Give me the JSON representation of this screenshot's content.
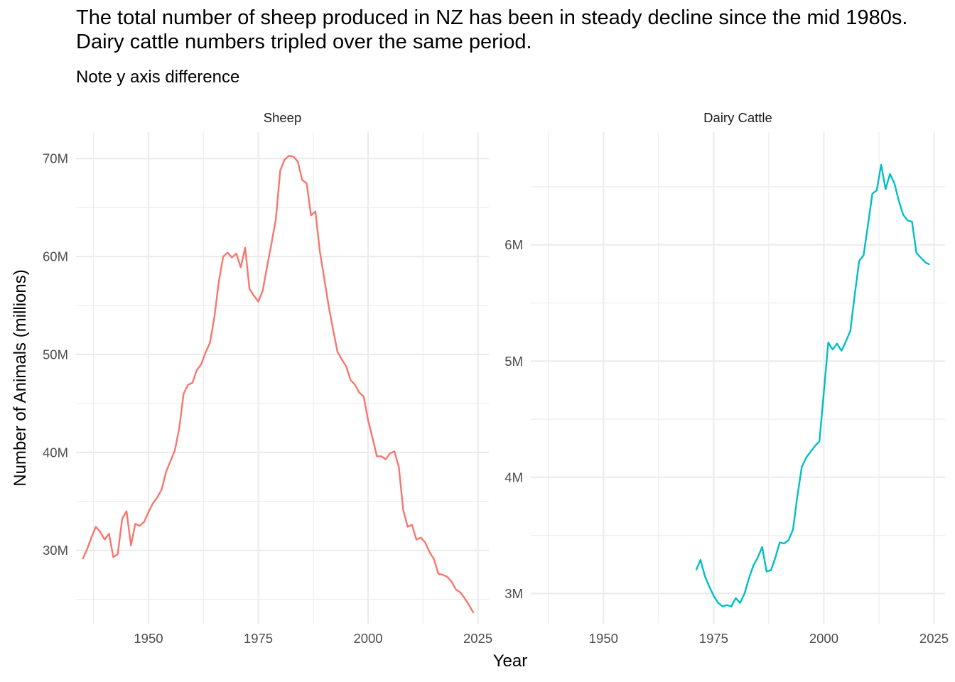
{
  "title": "The total number of sheep produced in NZ has been in steady decline since the mid 1980s. Dairy cattle numbers tripled over the same period.",
  "subtitle": "Note y axis difference",
  "chart_data": {
    "type": "line",
    "title": "The total number of sheep produced in NZ has been in steady decline since the mid 1980s. Dairy cattle numbers tripled over the same period.",
    "subtitle": "Note y axis difference",
    "xlabel": "Year",
    "ylabel": "Number of Animals (millions)",
    "grid": true,
    "legend": "none",
    "facets": [
      {
        "name": "Sheep",
        "color": "#F8766D",
        "xlim": [
          1933.5,
          2027.5
        ],
        "ylim": [
          22.5,
          72.7
        ],
        "x_ticks": [
          1950,
          1975,
          2000,
          2025
        ],
        "x_tick_labels": [
          "1950",
          "1975",
          "2000",
          "2025"
        ],
        "y_ticks": [
          30,
          40,
          50,
          60,
          70
        ],
        "y_tick_labels": [
          "30M",
          "40M",
          "50M",
          "60M",
          "70M"
        ],
        "x": [
          1935,
          1936,
          1937,
          1938,
          1939,
          1940,
          1941,
          1942,
          1943,
          1944,
          1945,
          1946,
          1947,
          1948,
          1949,
          1950,
          1951,
          1952,
          1953,
          1954,
          1955,
          1956,
          1957,
          1958,
          1959,
          1960,
          1961,
          1962,
          1963,
          1964,
          1965,
          1966,
          1967,
          1968,
          1969,
          1970,
          1971,
          1972,
          1973,
          1974,
          1975,
          1976,
          1977,
          1978,
          1979,
          1980,
          1981,
          1982,
          1983,
          1984,
          1985,
          1986,
          1987,
          1988,
          1989,
          1990,
          1991,
          1992,
          1993,
          1994,
          1995,
          1996,
          1997,
          1998,
          1999,
          2000,
          2001,
          2002,
          2003,
          2004,
          2005,
          2006,
          2007,
          2008,
          2009,
          2010,
          2011,
          2012,
          2013,
          2014,
          2015,
          2016,
          2017,
          2018,
          2019,
          2020,
          2021,
          2022,
          2023,
          2024
        ],
        "y": [
          29.1,
          30.1,
          31.3,
          32.4,
          31.9,
          31.1,
          31.7,
          29.3,
          29.6,
          33.2,
          34.0,
          30.5,
          32.7,
          32.5,
          32.9,
          33.9,
          34.8,
          35.4,
          36.2,
          38.0,
          39.1,
          40.2,
          42.5,
          46.0,
          46.9,
          47.1,
          48.4,
          49.0,
          50.2,
          51.2,
          53.8,
          57.4,
          60.0,
          60.4,
          59.9,
          60.3,
          58.9,
          60.9,
          56.7,
          56.0,
          55.4,
          56.5,
          59.0,
          61.3,
          63.8,
          68.8,
          69.9,
          70.3,
          70.2,
          69.7,
          67.8,
          67.5,
          64.2,
          64.6,
          60.6,
          57.8,
          55.0,
          52.6,
          50.3,
          49.5,
          48.8,
          47.4,
          46.9,
          46.1,
          45.7,
          43.3,
          41.5,
          39.6,
          39.6,
          39.3,
          39.9,
          40.1,
          38.5,
          34.1,
          32.4,
          32.6,
          31.1,
          31.3,
          30.8,
          29.8,
          29.1,
          27.6,
          27.5,
          27.3,
          26.8,
          26.0,
          25.7,
          25.1,
          24.4,
          23.6
        ]
      },
      {
        "name": "Dairy Cattle",
        "color": "#00BFC4",
        "xlim": [
          1933.5,
          2027.5
        ],
        "ylim": [
          2.74,
          6.97
        ],
        "x_ticks": [
          1950,
          1975,
          2000,
          2025
        ],
        "x_tick_labels": [
          "1950",
          "1975",
          "2000",
          "2025"
        ],
        "y_ticks": [
          3,
          4,
          5,
          6
        ],
        "y_tick_labels": [
          "3M",
          "4M",
          "5M",
          "6M"
        ],
        "x": [
          1971,
          1972,
          1973,
          1974,
          1975,
          1976,
          1977,
          1978,
          1979,
          1980,
          1981,
          1982,
          1983,
          1984,
          1985,
          1986,
          1987,
          1988,
          1989,
          1990,
          1991,
          1992,
          1993,
          1994,
          1995,
          1996,
          1997,
          1998,
          1999,
          2000,
          2001,
          2002,
          2003,
          2004,
          2005,
          2006,
          2007,
          2008,
          2009,
          2010,
          2011,
          2012,
          2013,
          2014,
          2015,
          2016,
          2017,
          2018,
          2019,
          2020,
          2021,
          2022,
          2023,
          2024
        ],
        "y": [
          3.2,
          3.29,
          3.15,
          3.06,
          2.98,
          2.92,
          2.89,
          2.9,
          2.89,
          2.96,
          2.92,
          3.0,
          3.13,
          3.24,
          3.31,
          3.4,
          3.19,
          3.2,
          3.31,
          3.44,
          3.43,
          3.46,
          3.55,
          3.84,
          4.09,
          4.17,
          4.22,
          4.27,
          4.31,
          4.73,
          5.16,
          5.1,
          5.15,
          5.09,
          5.17,
          5.26,
          5.57,
          5.86,
          5.91,
          6.17,
          6.44,
          6.47,
          6.69,
          6.48,
          6.61,
          6.53,
          6.38,
          6.26,
          6.21,
          6.2,
          5.93,
          5.89,
          5.85,
          5.83
        ]
      }
    ]
  }
}
